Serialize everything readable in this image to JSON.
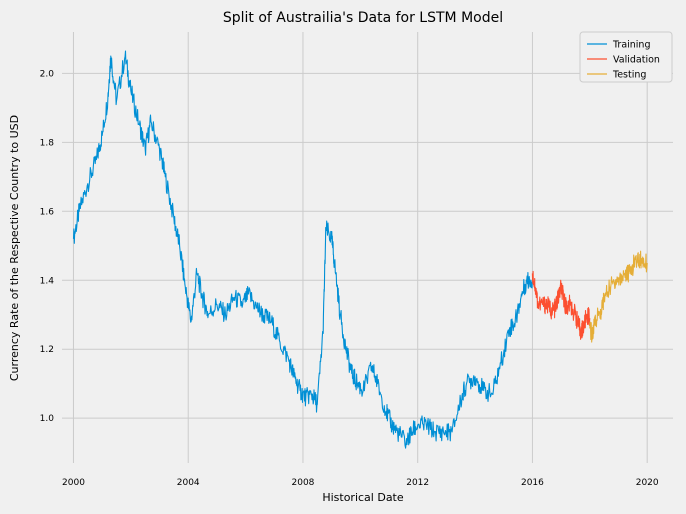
{
  "chart_data": {
    "type": "line",
    "title": "Split of Austrailia's Data for LSTM Model",
    "xlabel": "Historical Date",
    "ylabel": "Currency Rate of the Respective Country to USD",
    "x_ticks": [
      "2000",
      "2004",
      "2008",
      "2012",
      "2016",
      "2020"
    ],
    "y_ticks": [
      "1.0",
      "1.2",
      "1.4",
      "1.6",
      "1.8",
      "2.0"
    ],
    "xlim": [
      1999.6,
      2020.9
    ],
    "ylim": [
      0.87,
      2.12
    ],
    "grid": true,
    "legend_position": "top-right",
    "series": [
      {
        "name": "Training",
        "color": "#008fd5",
        "points": [
          [
            2000.0,
            1.52
          ],
          [
            2000.2,
            1.6
          ],
          [
            2000.5,
            1.68
          ],
          [
            2000.8,
            1.75
          ],
          [
            2001.0,
            1.82
          ],
          [
            2001.2,
            1.93
          ],
          [
            2001.3,
            2.05
          ],
          [
            2001.5,
            1.92
          ],
          [
            2001.8,
            2.05
          ],
          [
            2002.0,
            1.95
          ],
          [
            2002.3,
            1.85
          ],
          [
            2002.5,
            1.78
          ],
          [
            2002.7,
            1.86
          ],
          [
            2003.0,
            1.78
          ],
          [
            2003.2,
            1.7
          ],
          [
            2003.5,
            1.58
          ],
          [
            2003.7,
            1.5
          ],
          [
            2003.9,
            1.38
          ],
          [
            2004.1,
            1.28
          ],
          [
            2004.3,
            1.42
          ],
          [
            2004.5,
            1.35
          ],
          [
            2004.7,
            1.3
          ],
          [
            2005.0,
            1.33
          ],
          [
            2005.3,
            1.3
          ],
          [
            2005.6,
            1.35
          ],
          [
            2005.9,
            1.33
          ],
          [
            2006.1,
            1.36
          ],
          [
            2006.4,
            1.32
          ],
          [
            2006.6,
            1.3
          ],
          [
            2006.9,
            1.28
          ],
          [
            2007.2,
            1.22
          ],
          [
            2007.5,
            1.17
          ],
          [
            2007.7,
            1.12
          ],
          [
            2007.9,
            1.08
          ],
          [
            2008.1,
            1.06
          ],
          [
            2008.3,
            1.07
          ],
          [
            2008.5,
            1.04
          ],
          [
            2008.7,
            1.25
          ],
          [
            2008.8,
            1.55
          ],
          [
            2009.0,
            1.52
          ],
          [
            2009.1,
            1.45
          ],
          [
            2009.3,
            1.3
          ],
          [
            2009.5,
            1.2
          ],
          [
            2009.7,
            1.13
          ],
          [
            2009.9,
            1.1
          ],
          [
            2010.1,
            1.08
          ],
          [
            2010.4,
            1.15
          ],
          [
            2010.6,
            1.1
          ],
          [
            2010.9,
            1.02
          ],
          [
            2011.1,
            0.98
          ],
          [
            2011.3,
            0.96
          ],
          [
            2011.6,
            0.93
          ],
          [
            2011.8,
            0.96
          ],
          [
            2012.0,
            0.98
          ],
          [
            2012.3,
            0.98
          ],
          [
            2012.6,
            0.96
          ],
          [
            2012.9,
            0.96
          ],
          [
            2013.2,
            0.96
          ],
          [
            2013.5,
            1.05
          ],
          [
            2013.7,
            1.1
          ],
          [
            2014.0,
            1.12
          ],
          [
            2014.3,
            1.08
          ],
          [
            2014.6,
            1.07
          ],
          [
            2014.9,
            1.16
          ],
          [
            2015.2,
            1.26
          ],
          [
            2015.4,
            1.28
          ],
          [
            2015.6,
            1.35
          ],
          [
            2015.8,
            1.4
          ],
          [
            2016.0,
            1.4
          ]
        ]
      },
      {
        "name": "Validation",
        "color": "#fc4f30",
        "points": [
          [
            2016.0,
            1.42
          ],
          [
            2016.1,
            1.38
          ],
          [
            2016.2,
            1.33
          ],
          [
            2016.4,
            1.33
          ],
          [
            2016.5,
            1.33
          ],
          [
            2016.7,
            1.31
          ],
          [
            2016.8,
            1.32
          ],
          [
            2016.9,
            1.35
          ],
          [
            2017.0,
            1.38
          ],
          [
            2017.1,
            1.34
          ],
          [
            2017.2,
            1.32
          ],
          [
            2017.3,
            1.33
          ],
          [
            2017.5,
            1.3
          ],
          [
            2017.6,
            1.27
          ],
          [
            2017.7,
            1.25
          ],
          [
            2017.8,
            1.27
          ],
          [
            2017.9,
            1.3
          ],
          [
            2018.0,
            1.29
          ]
        ]
      },
      {
        "name": "Testing",
        "color": "#e5ae38",
        "points": [
          [
            2018.0,
            1.26
          ],
          [
            2018.1,
            1.24
          ],
          [
            2018.2,
            1.29
          ],
          [
            2018.4,
            1.31
          ],
          [
            2018.5,
            1.35
          ],
          [
            2018.7,
            1.38
          ],
          [
            2018.9,
            1.4
          ],
          [
            2019.0,
            1.4
          ],
          [
            2019.2,
            1.42
          ],
          [
            2019.4,
            1.42
          ],
          [
            2019.6,
            1.46
          ],
          [
            2019.8,
            1.46
          ],
          [
            2020.0,
            1.45
          ]
        ]
      }
    ]
  }
}
